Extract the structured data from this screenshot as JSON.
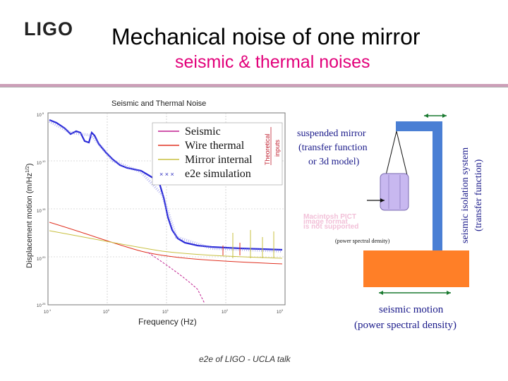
{
  "logo": "LIGO",
  "title": "Mechanical noise of one mirror",
  "subtitle": "seismic & thermal noises",
  "chart": {
    "title": "Seismic and Thermal Noise",
    "ylabel": "Displacement motion (m/Hz",
    "ylabel_sup": "1/2",
    "ylabel_end": ")",
    "xlabel": "Frequency (Hz)",
    "x_ticks": [
      "10",
      "10",
      "10",
      "10",
      "10"
    ],
    "x_exps": [
      "-1",
      "0",
      "1",
      "2",
      "3"
    ],
    "y_ticks": [
      "10",
      "10",
      "10",
      "10",
      "10"
    ],
    "y_exps": [
      "-5",
      "-10",
      "-15",
      "-20",
      "-25"
    ],
    "legend": [
      {
        "label": "Seismic",
        "color": "#c02090"
      },
      {
        "label": "Wire thermal",
        "color": "#e03020"
      },
      {
        "label": "Mirror internal",
        "color": "#c8c040"
      },
      {
        "label": "e2e simulation",
        "color": "#3030c0"
      }
    ],
    "legend_note_1": "Theoretical",
    "legend_note_2": "inputs"
  },
  "diagram": {
    "mirror_label_1": "suspended mirror",
    "mirror_label_2": "(transfer function",
    "mirror_label_3": "or 3d model)",
    "pict_1": "Macintosh PICT",
    "pict_2": "image format",
    "pict_3": "is not supported",
    "psd_label": "(power spectral density)",
    "iso_label_1": "seismic isolation system",
    "iso_label_2": "(transfer function)",
    "motion_label_1": "seismic motion",
    "motion_label_2": "(power spectral density)"
  },
  "footer": "e2e of LIGO - UCLA talk",
  "colors": {
    "accent": "#e2007a",
    "ground": "#ff7f27",
    "stack": "#4a7fd4",
    "mirror": "#c8b8f0"
  }
}
